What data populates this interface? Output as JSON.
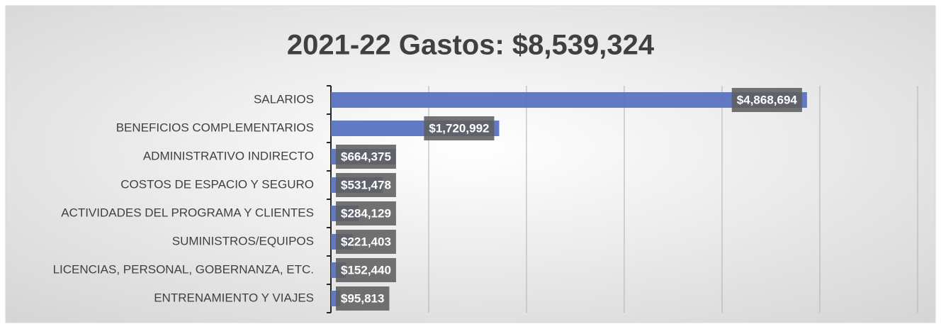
{
  "chart_data": {
    "type": "barh",
    "title": "2021-22 Gastos: $8,539,324",
    "categories": [
      "SALARIOS",
      "BENEFICIOS COMPLEMENTARIOS",
      "ADMINISTRATIVO INDIRECTO",
      "COSTOS DE ESPACIO Y SEGURO",
      "ACTIVIDADES DEL PROGRAMA Y CLIENTES",
      "SUMINISTROS/EQUIPOS",
      "LICENCIAS, PERSONAL, GOBERNANZA, ETC.",
      "ENTRENAMIENTO Y VIAJES"
    ],
    "values": [
      4868694,
      1720992,
      664375,
      531478,
      284129,
      221403,
      152440,
      95813
    ],
    "value_labels": [
      "$4,868,694",
      "$1,720,992",
      "$664,375",
      "$531,478",
      "$284,129",
      "$221,403",
      "$152,440",
      "$95,813"
    ],
    "color": "#5a72c0",
    "xlim": [
      0,
      6000000
    ],
    "xticks": [
      0,
      1000000,
      2000000,
      3000000,
      4000000,
      5000000,
      6000000
    ],
    "grid": true
  }
}
